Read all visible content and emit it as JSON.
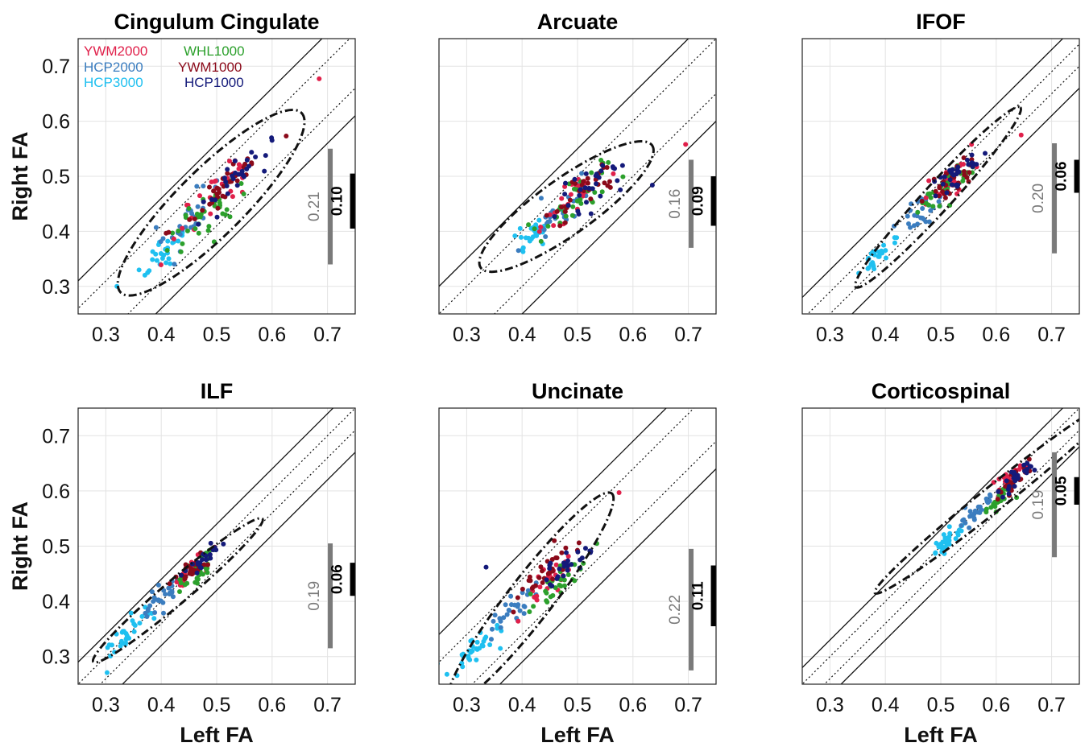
{
  "figure": {
    "xlabel": "Left FA",
    "ylabel": "Right FA",
    "colors": {
      "YWM2000": "#e0204a",
      "WHL1000": "#2ca02c",
      "HCP2000": "#3b7dbf",
      "YWM1000": "#8b0a1a",
      "HCP3000": "#1fc0f0",
      "HCP1000": "#141a7a"
    },
    "legend": [
      {
        "label": "YWM2000",
        "key": "YWM2000"
      },
      {
        "label": "WHL1000",
        "key": "WHL1000"
      },
      {
        "label": "HCP2000",
        "key": "HCP2000"
      },
      {
        "label": "YWM1000",
        "key": "YWM1000"
      },
      {
        "label": "HCP3000",
        "key": "HCP3000"
      },
      {
        "label": "HCP1000",
        "key": "HCP1000"
      }
    ]
  },
  "chart_data": [
    {
      "type": "scatter",
      "title": "Cingulum Cingulate",
      "xlim": [
        0.25,
        0.75
      ],
      "ylim": [
        0.25,
        0.75
      ],
      "xticks": [
        "0.3",
        "0.4",
        "0.5",
        "0.6",
        "0.7"
      ],
      "yticks": [
        "0.3",
        "0.4",
        "0.5",
        "0.6",
        "0.7"
      ],
      "ellipse": {
        "cx": 0.49,
        "cy": 0.452,
        "len": 0.23,
        "wid": 0.06,
        "slope": 1.0
      },
      "band_outer": 0.1,
      "band_inner": 0.05,
      "band_center_offset": -0.04,
      "left_bar": {
        "label": "0.21",
        "value": 0.21,
        "center": 0.445
      },
      "right_bar": {
        "label": "0.10",
        "value": 0.1,
        "center": 0.455
      },
      "clusters": [
        {
          "series": "HCP3000",
          "cx": 0.4,
          "cy": 0.36,
          "spread": 0.03,
          "n": 28
        },
        {
          "series": "HCP2000",
          "cx": 0.45,
          "cy": 0.42,
          "spread": 0.04,
          "n": 28
        },
        {
          "series": "YWM2000",
          "cx": 0.5,
          "cy": 0.47,
          "spread": 0.05,
          "n": 30
        },
        {
          "series": "WHL1000",
          "cx": 0.49,
          "cy": 0.44,
          "spread": 0.045,
          "n": 38
        },
        {
          "series": "YWM1000",
          "cx": 0.51,
          "cy": 0.48,
          "spread": 0.045,
          "n": 36
        },
        {
          "series": "HCP1000",
          "cx": 0.53,
          "cy": 0.49,
          "spread": 0.045,
          "n": 28
        }
      ],
      "outliers": [
        {
          "series": "YWM2000",
          "x": 0.685,
          "y": 0.677
        },
        {
          "series": "HCP3000",
          "x": 0.32,
          "y": 0.3
        }
      ]
    },
    {
      "type": "scatter",
      "title": "Arcuate",
      "xlim": [
        0.25,
        0.75
      ],
      "ylim": [
        0.25,
        0.75
      ],
      "xticks": [
        "0.3",
        "0.4",
        "0.5",
        "0.6",
        "0.7"
      ],
      "yticks": [],
      "ellipse": {
        "cx": 0.48,
        "cy": 0.445,
        "len": 0.19,
        "wid": 0.05,
        "slope": 0.72
      },
      "band_outer": 0.1,
      "band_inner": 0.05,
      "band_center_offset": -0.05,
      "left_bar": {
        "label": "0.16",
        "value": 0.16,
        "center": 0.45
      },
      "right_bar": {
        "label": "0.09",
        "value": 0.09,
        "center": 0.455
      },
      "clusters": [
        {
          "series": "HCP3000",
          "cx": 0.42,
          "cy": 0.4,
          "spread": 0.025,
          "n": 26
        },
        {
          "series": "HCP2000",
          "cx": 0.47,
          "cy": 0.44,
          "spread": 0.035,
          "n": 28
        },
        {
          "series": "YWM2000",
          "cx": 0.49,
          "cy": 0.46,
          "spread": 0.04,
          "n": 24
        },
        {
          "series": "WHL1000",
          "cx": 0.5,
          "cy": 0.46,
          "spread": 0.04,
          "n": 34
        },
        {
          "series": "YWM1000",
          "cx": 0.51,
          "cy": 0.47,
          "spread": 0.035,
          "n": 30
        },
        {
          "series": "HCP1000",
          "cx": 0.53,
          "cy": 0.48,
          "spread": 0.04,
          "n": 28
        }
      ],
      "outliers": [
        {
          "series": "YWM2000",
          "x": 0.695,
          "y": 0.558
        },
        {
          "series": "HCP1000",
          "x": 0.635,
          "y": 0.484
        }
      ]
    },
    {
      "type": "scatter",
      "title": "IFOF",
      "xlim": [
        0.25,
        0.75
      ],
      "ylim": [
        0.25,
        0.75
      ],
      "xticks": [
        "0.3",
        "0.4",
        "0.5",
        "0.6",
        "0.7"
      ],
      "yticks": [],
      "ellipse": {
        "cx": 0.495,
        "cy": 0.462,
        "len": 0.22,
        "wid": 0.025,
        "slope": 1.1
      },
      "band_outer": 0.06,
      "band_inner": 0.02,
      "band_center_offset": -0.03,
      "left_bar": {
        "label": "0.20",
        "value": 0.2,
        "center": 0.46
      },
      "right_bar": {
        "label": "0.06",
        "value": 0.06,
        "center": 0.5
      },
      "clusters": [
        {
          "series": "HCP3000",
          "cx": 0.39,
          "cy": 0.36,
          "spread": 0.02,
          "n": 28
        },
        {
          "series": "HCP2000",
          "cx": 0.47,
          "cy": 0.44,
          "spread": 0.03,
          "n": 28
        },
        {
          "series": "YWM2000",
          "cx": 0.51,
          "cy": 0.49,
          "spread": 0.03,
          "n": 24
        },
        {
          "series": "WHL1000",
          "cx": 0.51,
          "cy": 0.48,
          "spread": 0.03,
          "n": 34
        },
        {
          "series": "YWM1000",
          "cx": 0.52,
          "cy": 0.49,
          "spread": 0.03,
          "n": 30
        },
        {
          "series": "HCP1000",
          "cx": 0.53,
          "cy": 0.5,
          "spread": 0.03,
          "n": 28
        }
      ],
      "outliers": [
        {
          "series": "YWM2000",
          "x": 0.645,
          "y": 0.575
        }
      ]
    },
    {
      "type": "scatter",
      "title": "ILF",
      "xlim": [
        0.25,
        0.75
      ],
      "ylim": [
        0.25,
        0.75
      ],
      "xticks": [
        "0.3",
        "0.4",
        "0.5",
        "0.6",
        "0.7"
      ],
      "yticks": [
        "0.3",
        "0.4",
        "0.5",
        "0.6",
        "0.7"
      ],
      "ellipse": {
        "cx": 0.43,
        "cy": 0.42,
        "len": 0.2,
        "wid": 0.022,
        "slope": 0.85
      },
      "band_outer": 0.06,
      "band_inner": 0.02,
      "band_center_offset": -0.02,
      "left_bar": {
        "label": "0.19",
        "value": 0.19,
        "center": 0.41
      },
      "right_bar": {
        "label": "0.06",
        "value": 0.06,
        "center": 0.44
      },
      "clusters": [
        {
          "series": "HCP3000",
          "cx": 0.34,
          "cy": 0.34,
          "spread": 0.025,
          "n": 32
        },
        {
          "series": "HCP2000",
          "cx": 0.4,
          "cy": 0.41,
          "spread": 0.025,
          "n": 28
        },
        {
          "series": "YWM2000",
          "cx": 0.45,
          "cy": 0.45,
          "spread": 0.02,
          "n": 22
        },
        {
          "series": "WHL1000",
          "cx": 0.46,
          "cy": 0.45,
          "spread": 0.022,
          "n": 32
        },
        {
          "series": "YWM1000",
          "cx": 0.46,
          "cy": 0.46,
          "spread": 0.02,
          "n": 26
        },
        {
          "series": "HCP1000",
          "cx": 0.47,
          "cy": 0.47,
          "spread": 0.02,
          "n": 22
        }
      ],
      "outliers": []
    },
    {
      "type": "scatter",
      "title": "Uncinate",
      "xlim": [
        0.25,
        0.75
      ],
      "ylim": [
        0.25,
        0.75
      ],
      "xticks": [
        "0.3",
        "0.4",
        "0.5",
        "0.6",
        "0.7"
      ],
      "yticks": [],
      "ellipse": {
        "cx": 0.415,
        "cy": 0.405,
        "len": 0.24,
        "wid": 0.04,
        "slope": 1.3
      },
      "band_outer": 0.1,
      "band_inner": 0.05,
      "band_center_offset": -0.01,
      "left_bar": {
        "label": "0.22",
        "value": 0.22,
        "center": 0.385
      },
      "right_bar": {
        "label": "0.11",
        "value": 0.11,
        "center": 0.41
      },
      "clusters": [
        {
          "series": "HCP3000",
          "cx": 0.31,
          "cy": 0.31,
          "spread": 0.03,
          "n": 34
        },
        {
          "series": "HCP2000",
          "cx": 0.39,
          "cy": 0.39,
          "spread": 0.03,
          "n": 28
        },
        {
          "series": "YWM2000",
          "cx": 0.45,
          "cy": 0.44,
          "spread": 0.03,
          "n": 24
        },
        {
          "series": "WHL1000",
          "cx": 0.46,
          "cy": 0.43,
          "spread": 0.035,
          "n": 32
        },
        {
          "series": "YWM1000",
          "cx": 0.45,
          "cy": 0.46,
          "spread": 0.03,
          "n": 30
        },
        {
          "series": "HCP1000",
          "cx": 0.47,
          "cy": 0.46,
          "spread": 0.03,
          "n": 26
        }
      ],
      "outliers": [
        {
          "series": "YWM2000",
          "x": 0.575,
          "y": 0.597
        },
        {
          "series": "HCP1000",
          "x": 0.335,
          "y": 0.462
        }
      ]
    },
    {
      "type": "scatter",
      "title": "Corticospinal",
      "xlim": [
        0.25,
        0.75
      ],
      "ylim": [
        0.25,
        0.75
      ],
      "xticks": [
        "0.3",
        "0.4",
        "0.5",
        "0.6",
        "0.7"
      ],
      "yticks": [],
      "ellipse": {
        "cx": 0.6,
        "cy": 0.59,
        "len": 0.28,
        "wid": 0.022,
        "slope": 0.8
      },
      "band_outer": 0.05,
      "band_inner": 0.02,
      "band_center_offset": -0.02,
      "left_bar": {
        "label": "0.19",
        "value": 0.19,
        "center": 0.575
      },
      "right_bar": {
        "label": "0.05",
        "value": 0.05,
        "center": 0.6
      },
      "clusters": [
        {
          "series": "HCP3000",
          "cx": 0.51,
          "cy": 0.51,
          "spread": 0.02,
          "n": 30
        },
        {
          "series": "HCP2000",
          "cx": 0.56,
          "cy": 0.56,
          "spread": 0.02,
          "n": 26
        },
        {
          "series": "YWM2000",
          "cx": 0.62,
          "cy": 0.62,
          "spread": 0.02,
          "n": 20
        },
        {
          "series": "WHL1000",
          "cx": 0.61,
          "cy": 0.59,
          "spread": 0.022,
          "n": 30
        },
        {
          "series": "YWM1000",
          "cx": 0.63,
          "cy": 0.62,
          "spread": 0.02,
          "n": 28
        },
        {
          "series": "HCP1000",
          "cx": 0.64,
          "cy": 0.63,
          "spread": 0.02,
          "n": 26
        }
      ],
      "outliers": []
    }
  ]
}
